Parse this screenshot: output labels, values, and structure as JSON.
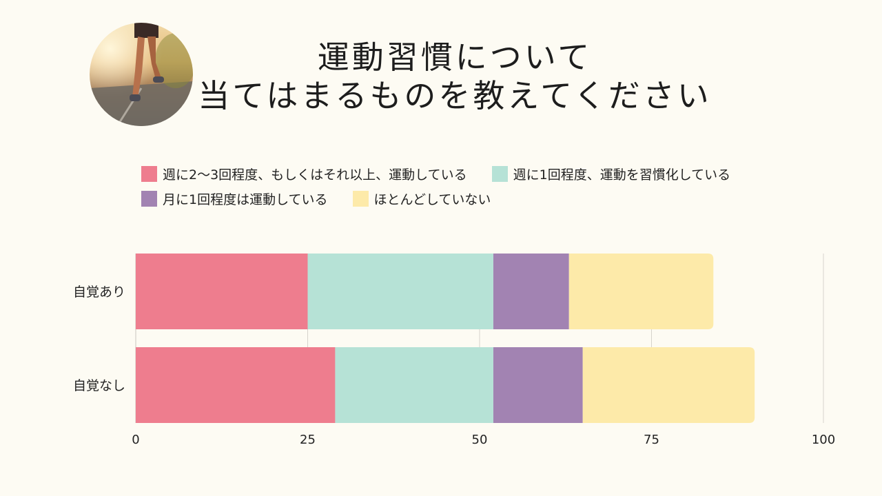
{
  "title_lines": [
    "運動習慣について",
    "当てはまるものを教えてください"
  ],
  "photo": {
    "icon": "running-legs-photo"
  },
  "chart_data": {
    "type": "bar",
    "orientation": "horizontal",
    "stacked": true,
    "categories": [
      "自覚あり",
      "自覚なし"
    ],
    "series": [
      {
        "name": "週に2〜3回程度、もしくはそれ以上、運動している",
        "color": "#ee7d8e",
        "values": [
          25,
          29
        ]
      },
      {
        "name": "週に1回程度、運動を習慣化している",
        "color": "#b6e2d6",
        "values": [
          27,
          23
        ]
      },
      {
        "name": "月に1回程度は運動している",
        "color": "#a283b2",
        "values": [
          11,
          13
        ]
      },
      {
        "name": "ほとんどしていない",
        "color": "#fdeaa9",
        "values": [
          21,
          25
        ]
      }
    ],
    "xlim": [
      0,
      100
    ],
    "x_ticks": [
      "0",
      "25",
      "50",
      "75",
      "100"
    ],
    "grid": true,
    "legend_placement": "top"
  }
}
